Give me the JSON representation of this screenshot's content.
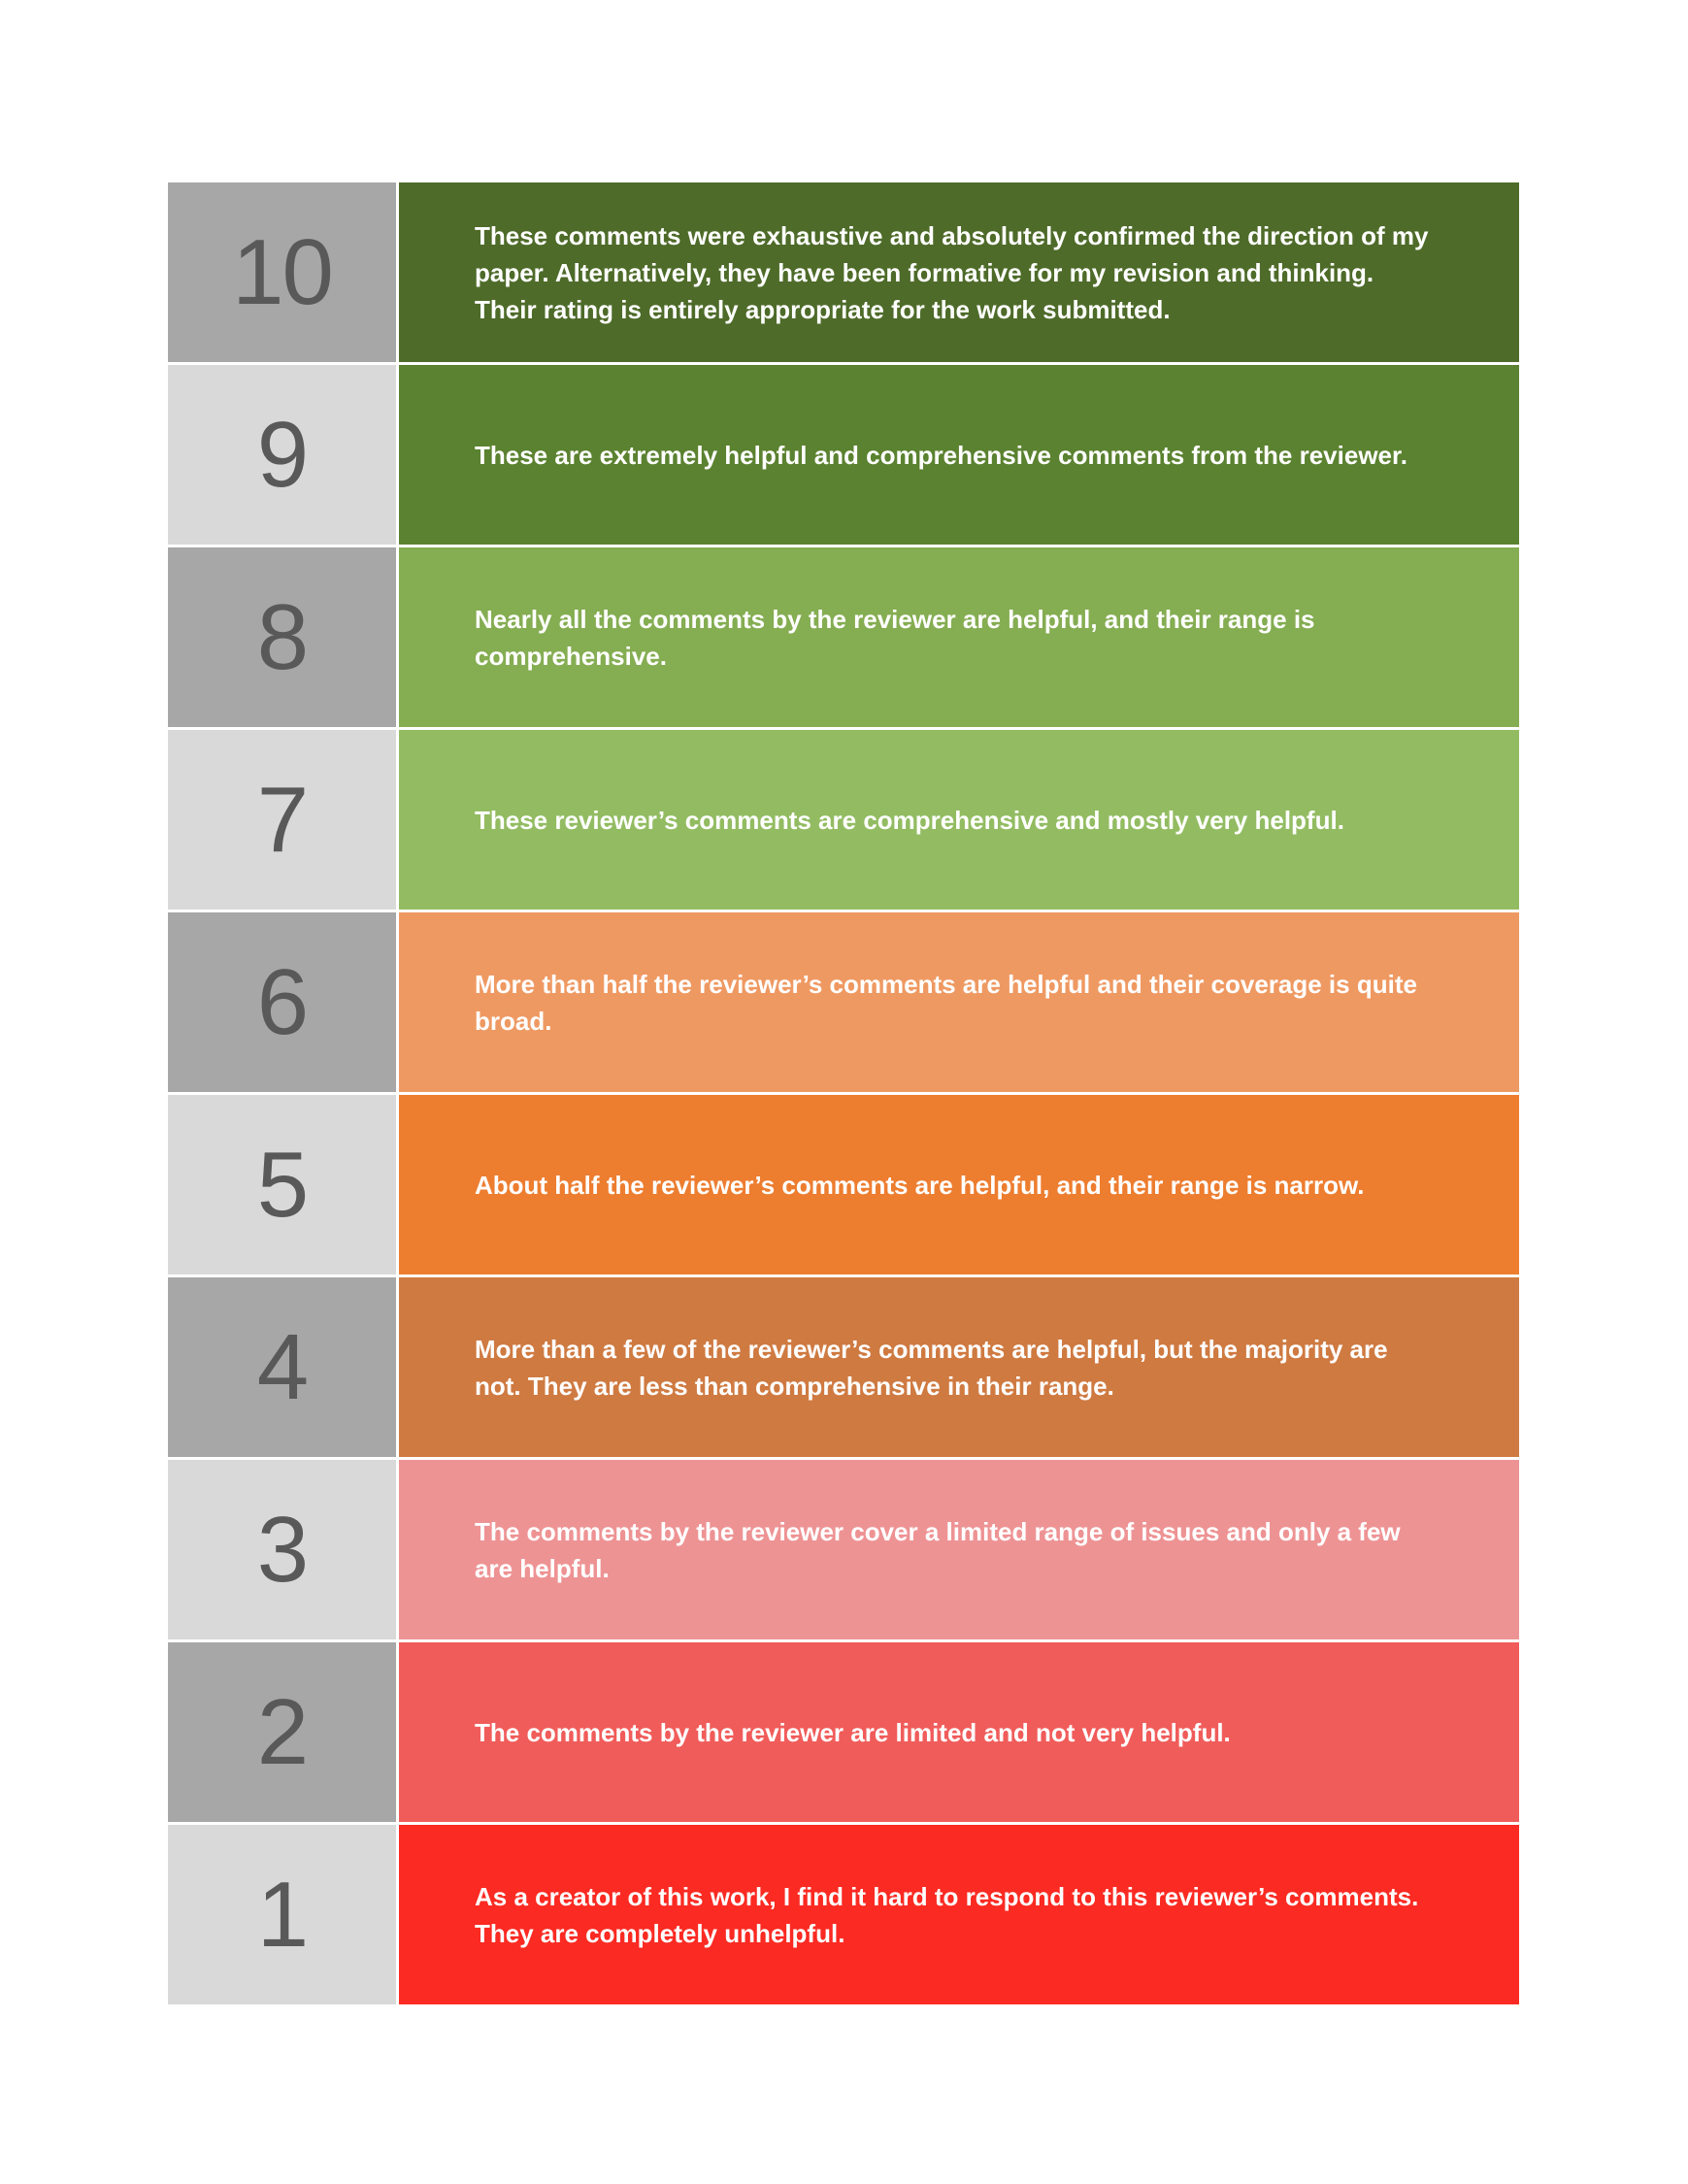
{
  "page": {
    "background_color": "#ffffff",
    "number_text_color": "#595959",
    "description_text_color": "#ffffff",
    "score_cell_shade_dark": "#a7a7a7",
    "score_cell_shade_light": "#d9d9d9",
    "separator_color": "#ffffff"
  },
  "rating_scale": {
    "rows": [
      {
        "score": "10",
        "shade": "dark",
        "color": "#4e6b29",
        "description": "These comments were exhaustive and absolutely confirmed the direction of my paper. Alternatively, they have been formative for my revision and thinking. Their rating is entirely appropriate for the work submitted."
      },
      {
        "score": "9",
        "shade": "light",
        "color": "#5b8230",
        "description": "These are extremely helpful and comprehensive comments from the reviewer."
      },
      {
        "score": "8",
        "shade": "dark",
        "color": "#85ad52",
        "description": "Nearly all the comments by the reviewer are helpful, and their range is comprehensive."
      },
      {
        "score": "7",
        "shade": "light",
        "color": "#93bc62",
        "description": "These reviewer’s comments are comprehensive and mostly very helpful."
      },
      {
        "score": "6",
        "shade": "dark",
        "color": "#ef9962",
        "description": "More than half the reviewer’s comments are helpful and their coverage is quite broad."
      },
      {
        "score": "5",
        "shade": "light",
        "color": "#ed7d2f",
        "description": "About half the reviewer’s comments are helpful, and their range is narrow."
      },
      {
        "score": "4",
        "shade": "dark",
        "color": "#cf7a41",
        "description": "More than a few of the reviewer’s comments are helpful, but the majority are not. They are less than comprehensive in their range."
      },
      {
        "score": "3",
        "shade": "light",
        "color": "#ee9394",
        "description": "The comments by the reviewer cover a limited range of issues and only a few are helpful."
      },
      {
        "score": "2",
        "shade": "dark",
        "color": "#f05c5a",
        "description": "The comments by the reviewer are limited and not very helpful."
      },
      {
        "score": "1",
        "shade": "light",
        "color": "#fb2a22",
        "description": "As a creator of this work, I find it hard to respond to this reviewer’s comments. They are completely unhelpful."
      }
    ]
  }
}
